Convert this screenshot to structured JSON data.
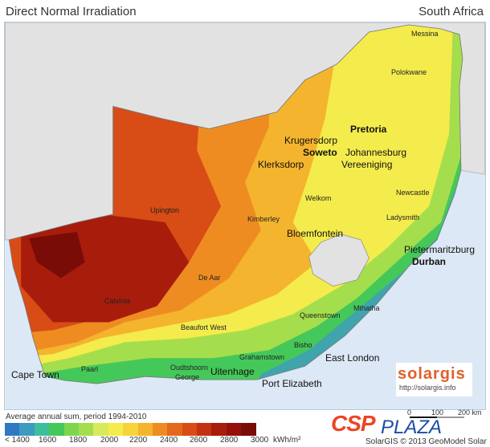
{
  "header": {
    "title": "Direct Normal Irradiation",
    "region": "South Africa"
  },
  "cities": [
    "Messina",
    "Polokwane",
    "Pretoria",
    "Krugersdorp",
    "Soweto",
    "Johannesburg",
    "Klerksdorp",
    "Vereeniging",
    "Newcastle",
    "Welkom",
    "Upington",
    "Kimberley",
    "Ladysmith",
    "Bloemfontein",
    "Pietermaritzburg",
    "Durban",
    "De Aar",
    "Calvinia",
    "Mthatha",
    "Queenstown",
    "Beaufort West",
    "Bisho",
    "Grahamstown",
    "East London",
    "Oudtshoorn",
    "George",
    "Uitenhage",
    "Port Elizabeth",
    "Paarl",
    "Cape Town"
  ],
  "legend": {
    "title": "Average annual sum, period 1994-2010",
    "unit": "kWh/m²",
    "ticks": [
      "< 1400",
      "1600",
      "1800",
      "2000",
      "2200",
      "2400",
      "2600",
      "2800",
      "3000"
    ],
    "colors": [
      "#2f78c4",
      "#3d9bc0",
      "#3dbf9e",
      "#45c85a",
      "#7dd64e",
      "#a5de4c",
      "#d8e95a",
      "#f4ec4c",
      "#f6d33a",
      "#f4b42e",
      "#ee8c22",
      "#e4681c",
      "#d84c16",
      "#c43010",
      "#a81c0c",
      "#941008",
      "#7a0c08"
    ]
  },
  "sea_color": "#dce8f5",
  "neighbor_color": "#e2e2e2",
  "scale": {
    "labels": [
      "0",
      "100",
      "200 km"
    ]
  },
  "logos": {
    "csp": "CSP",
    "plaza": "PLAZA",
    "solargis": "solargis",
    "solargis_url": "http://solargis.info"
  },
  "copyright": "SolarGIS © 2013 GeoModel Solar"
}
